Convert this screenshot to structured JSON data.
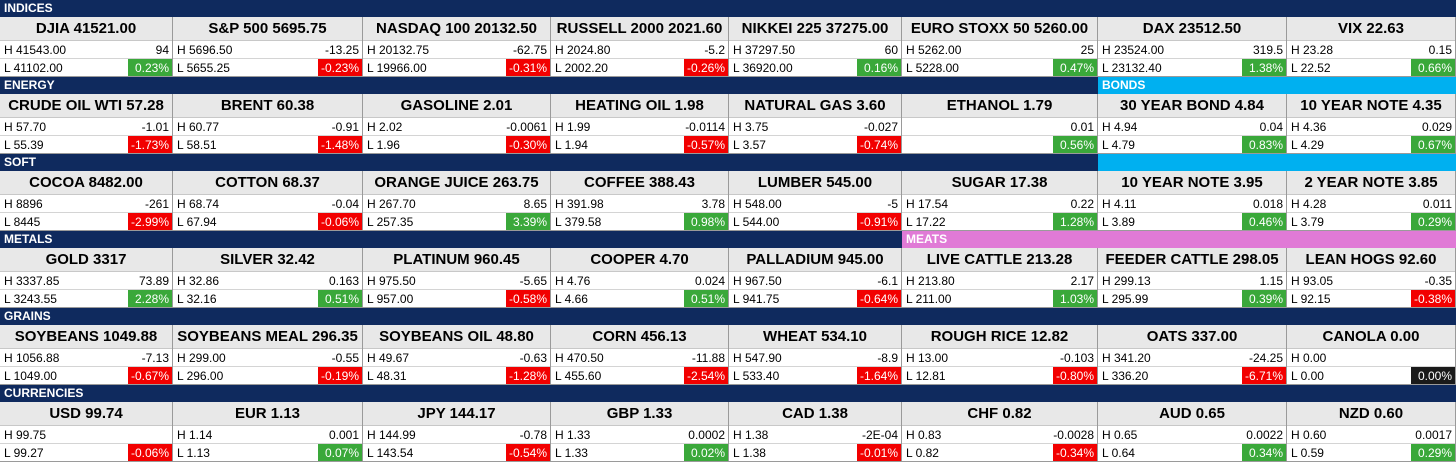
{
  "colors": {
    "section": "#0f2a5e",
    "bonds": "#00b0f0",
    "meats": "#e07ad6",
    "up": "#3aa83a",
    "down": "#f20000",
    "flat": "#1a1a1a"
  },
  "rows": [
    {
      "type": "header",
      "sections": [
        {
          "label": "INDICES",
          "span": 8,
          "color": "section"
        }
      ]
    },
    {
      "type": "quotes",
      "cells": [
        {
          "name": "DJIA  41521.00",
          "high": "H 41543.00",
          "change": "94",
          "low": "L 41102.00",
          "pct": "0.23%",
          "dir": "up"
        },
        {
          "name": "S&P 500 5695.75",
          "high": "H 5696.50",
          "change": "-13.25",
          "low": "L 5655.25",
          "pct": "-0.23%",
          "dir": "down"
        },
        {
          "name": "NASDAQ 100  20132.50",
          "high": "H 20132.75",
          "change": "-62.75",
          "low": "L 19966.00",
          "pct": "-0.31%",
          "dir": "down"
        },
        {
          "name": "RUSSELL 2000  2021.60",
          "high": "H 2024.80",
          "change": "-5.2",
          "low": "L 2002.20",
          "pct": "-0.26%",
          "dir": "down"
        },
        {
          "name": "NIKKEI 225  37275.00",
          "high": "H 37297.50",
          "change": "60",
          "low": "L 36920.00",
          "pct": "0.16%",
          "dir": "up"
        },
        {
          "name": "EURO STOXX 50  5260.00",
          "high": "H 5262.00",
          "change": "25",
          "low": "L 5228.00",
          "pct": "0.47%",
          "dir": "up"
        },
        {
          "name": "DAX  23512.50",
          "high": "H 23524.00",
          "change": "319.5",
          "low": "L 23132.40",
          "pct": "1.38%",
          "dir": "up"
        },
        {
          "name": "VIX  22.63",
          "high": "H 23.28",
          "change": "0.15",
          "low": "L 22.52",
          "pct": "0.66%",
          "dir": "up"
        }
      ]
    },
    {
      "type": "header",
      "sections": [
        {
          "label": "ENERGY",
          "span": 6,
          "color": "section"
        },
        {
          "label": "BONDS",
          "span": 2,
          "color": "bonds"
        }
      ]
    },
    {
      "type": "quotes",
      "cells": [
        {
          "name": "CRUDE OIL WTI  57.28",
          "high": "H 57.70",
          "change": "-1.01",
          "low": "L 55.39",
          "pct": "-1.73%",
          "dir": "down"
        },
        {
          "name": "BRENT  60.38",
          "high": "H 60.77",
          "change": "-0.91",
          "low": "L 58.51",
          "pct": "-1.48%",
          "dir": "down"
        },
        {
          "name": "GASOLINE  2.01",
          "high": "H 2.02",
          "change": "-0.0061",
          "low": "L 1.96",
          "pct": "-0.30%",
          "dir": "down"
        },
        {
          "name": "HEATING OIL  1.98",
          "high": "H 1.99",
          "change": "-0.0114",
          "low": "L 1.94",
          "pct": "-0.57%",
          "dir": "down"
        },
        {
          "name": "NATURAL GAS  3.60",
          "high": "H 3.75",
          "change": "-0.027",
          "low": "L 3.57",
          "pct": "-0.74%",
          "dir": "down"
        },
        {
          "name": "ETHANOL  1.79",
          "high": "",
          "change": "0.01",
          "low": "",
          "pct": "0.56%",
          "dir": "up"
        },
        {
          "name": "30 YEAR BOND  4.84",
          "high": "H 4.94",
          "change": "0.04",
          "low": "L 4.79",
          "pct": "0.83%",
          "dir": "up"
        },
        {
          "name": "10 YEAR NOTE  4.35",
          "high": "H 4.36",
          "change": "0.029",
          "low": "L 4.29",
          "pct": "0.67%",
          "dir": "up"
        }
      ]
    },
    {
      "type": "header",
      "sections": [
        {
          "label": "SOFT",
          "span": 6,
          "color": "section"
        },
        {
          "label": "",
          "span": 2,
          "color": "bonds"
        }
      ]
    },
    {
      "type": "quotes",
      "cells": [
        {
          "name": "COCOA  8482.00",
          "high": "H 8896",
          "change": "-261",
          "low": "L 8445",
          "pct": "-2.99%",
          "dir": "down"
        },
        {
          "name": "COTTON  68.37",
          "high": "H 68.74",
          "change": "-0.04",
          "low": "L 67.94",
          "pct": "-0.06%",
          "dir": "down"
        },
        {
          "name": "ORANGE JUICE  263.75",
          "high": "H 267.70",
          "change": "8.65",
          "low": "L 257.35",
          "pct": "3.39%",
          "dir": "up"
        },
        {
          "name": "COFFEE  388.43",
          "high": "H 391.98",
          "change": "3.78",
          "low": "L 379.58",
          "pct": "0.98%",
          "dir": "up"
        },
        {
          "name": "LUMBER  545.00",
          "high": "H 548.00",
          "change": "-5",
          "low": "L 544.00",
          "pct": "-0.91%",
          "dir": "down"
        },
        {
          "name": "SUGAR  17.38",
          "high": "H 17.54",
          "change": "0.22",
          "low": "L 17.22",
          "pct": "1.28%",
          "dir": "up"
        },
        {
          "name": "10 YEAR NOTE  3.95",
          "high": "H 4.11",
          "change": "0.018",
          "low": "L 3.89",
          "pct": "0.46%",
          "dir": "up"
        },
        {
          "name": "2 YEAR NOTE  3.85",
          "high": "H 4.28",
          "change": "0.011",
          "low": "L 3.79",
          "pct": "0.29%",
          "dir": "up"
        }
      ]
    },
    {
      "type": "header",
      "sections": [
        {
          "label": "METALS",
          "span": 5,
          "color": "section"
        },
        {
          "label": "MEATS",
          "span": 3,
          "color": "meats"
        }
      ]
    },
    {
      "type": "quotes",
      "cells": [
        {
          "name": "GOLD  3317",
          "high": "H 3337.85",
          "change": "73.89",
          "low": "L 3243.55",
          "pct": "2.28%",
          "dir": "up"
        },
        {
          "name": "SILVER  32.42",
          "high": "H 32.86",
          "change": "0.163",
          "low": "L 32.16",
          "pct": "0.51%",
          "dir": "up"
        },
        {
          "name": "PLATINUM  960.45",
          "high": "H 975.50",
          "change": "-5.65",
          "low": "L 957.00",
          "pct": "-0.58%",
          "dir": "down"
        },
        {
          "name": "COOPER  4.70",
          "high": "H 4.76",
          "change": "0.024",
          "low": "L 4.66",
          "pct": "0.51%",
          "dir": "up"
        },
        {
          "name": "PALLADIUM  945.00",
          "high": "H 967.50",
          "change": "-6.1",
          "low": "L 941.75",
          "pct": "-0.64%",
          "dir": "down"
        },
        {
          "name": "LIVE CATTLE  213.28",
          "high": "H 213.80",
          "change": "2.17",
          "low": "L 211.00",
          "pct": "1.03%",
          "dir": "up"
        },
        {
          "name": "FEEDER CATTLE  298.05",
          "high": "H 299.13",
          "change": "1.15",
          "low": "L 295.99",
          "pct": "0.39%",
          "dir": "up"
        },
        {
          "name": "LEAN HOGS  92.60",
          "high": "H 93.05",
          "change": "-0.35",
          "low": "L 92.15",
          "pct": "-0.38%",
          "dir": "down"
        }
      ]
    },
    {
      "type": "header",
      "sections": [
        {
          "label": "GRAINS",
          "span": 8,
          "color": "section"
        }
      ]
    },
    {
      "type": "quotes",
      "cells": [
        {
          "name": "SOYBEANS  1049.88",
          "high": "H 1056.88",
          "change": "-7.13",
          "low": "L 1049.00",
          "pct": "-0.67%",
          "dir": "down"
        },
        {
          "name": "SOYBEANS MEAL  296.35",
          "high": "H 299.00",
          "change": "-0.55",
          "low": "L 296.00",
          "pct": "-0.19%",
          "dir": "down"
        },
        {
          "name": "SOYBEANS OIL  48.80",
          "high": "H 49.67",
          "change": "-0.63",
          "low": "L 48.31",
          "pct": "-1.28%",
          "dir": "down"
        },
        {
          "name": "CORN  456.13",
          "high": "H 470.50",
          "change": "-11.88",
          "low": "L 455.60",
          "pct": "-2.54%",
          "dir": "down"
        },
        {
          "name": "WHEAT  534.10",
          "high": "H 547.90",
          "change": "-8.9",
          "low": "L 533.40",
          "pct": "-1.64%",
          "dir": "down"
        },
        {
          "name": "ROUGH RICE  12.82",
          "high": "H 13.00",
          "change": "-0.103",
          "low": "L 12.81",
          "pct": "-0.80%",
          "dir": "down"
        },
        {
          "name": "OATS  337.00",
          "high": "H 341.20",
          "change": "-24.25",
          "low": "L 336.20",
          "pct": "-6.71%",
          "dir": "down"
        },
        {
          "name": "CANOLA  0.00",
          "high": "H 0.00",
          "change": "",
          "low": "L 0.00",
          "pct": "0.00%",
          "dir": "flat"
        }
      ]
    },
    {
      "type": "header",
      "sections": [
        {
          "label": "CURRENCIES",
          "span": 8,
          "color": "section"
        }
      ]
    },
    {
      "type": "quotes",
      "cells": [
        {
          "name": "USD  99.74",
          "high": "H 99.75",
          "change": "",
          "low": "L 99.27",
          "pct": "-0.06%",
          "dir": "down"
        },
        {
          "name": "EUR  1.13",
          "high": "H 1.14",
          "change": "0.001",
          "low": "L 1.13",
          "pct": "0.07%",
          "dir": "up"
        },
        {
          "name": "JPY  144.17",
          "high": "H 144.99",
          "change": "-0.78",
          "low": "L 143.54",
          "pct": "-0.54%",
          "dir": "down"
        },
        {
          "name": "GBP  1.33",
          "high": "H 1.33",
          "change": "0.0002",
          "low": "L 1.33",
          "pct": "0.02%",
          "dir": "up"
        },
        {
          "name": "CAD  1.38",
          "high": "H 1.38",
          "change": "-2E-04",
          "low": "L 1.38",
          "pct": "-0.01%",
          "dir": "down"
        },
        {
          "name": "CHF  0.82",
          "high": "H 0.83",
          "change": "-0.0028",
          "low": "L 0.82",
          "pct": "-0.34%",
          "dir": "down"
        },
        {
          "name": "AUD  0.65",
          "high": "H 0.65",
          "change": "0.0022",
          "low": "L 0.64",
          "pct": "0.34%",
          "dir": "up"
        },
        {
          "name": "NZD  0.60",
          "high": "H 0.60",
          "change": "0.0017",
          "low": "L 0.59",
          "pct": "0.29%",
          "dir": "up"
        }
      ]
    }
  ]
}
